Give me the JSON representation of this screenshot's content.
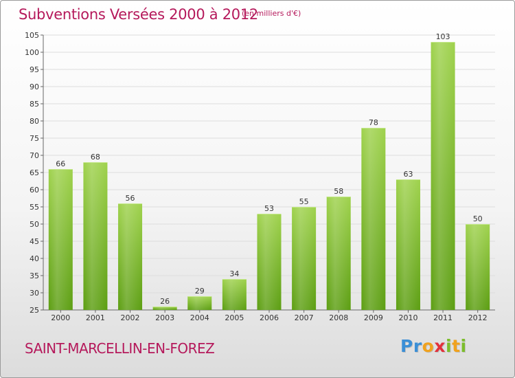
{
  "chart_data": {
    "type": "bar",
    "title": "Subventions Versées 2000 à 2012",
    "unit_note": "(en milliers d'€)",
    "categories": [
      "2000",
      "2001",
      "2002",
      "2003",
      "2004",
      "2005",
      "2006",
      "2007",
      "2008",
      "2009",
      "2010",
      "2011",
      "2012"
    ],
    "values": [
      66,
      68,
      56,
      26,
      29,
      34,
      53,
      55,
      58,
      78,
      63,
      103,
      50
    ],
    "ylim": [
      25,
      105
    ],
    "yticks": [
      25,
      30,
      35,
      40,
      45,
      50,
      55,
      60,
      65,
      70,
      75,
      80,
      85,
      90,
      95,
      100,
      105
    ],
    "grid": true,
    "xlabel": "",
    "ylabel": ""
  },
  "footer": {
    "commune": "SAINT-MARCELLIN-EN-FOREZ",
    "logo_letters": [
      "P",
      "r",
      "o",
      "x",
      "i",
      "t",
      "i"
    ]
  },
  "colors": {
    "title": "#b5195b",
    "bar_top": "#9fd24d",
    "bar_bottom": "#5c9e12",
    "grid": "#dddddd",
    "logo": [
      "#3b8fd6",
      "#3b8fd6",
      "#f0a21e",
      "#e2313b",
      "#7cbd2b",
      "#f0a21e",
      "#7cbd2b"
    ]
  }
}
